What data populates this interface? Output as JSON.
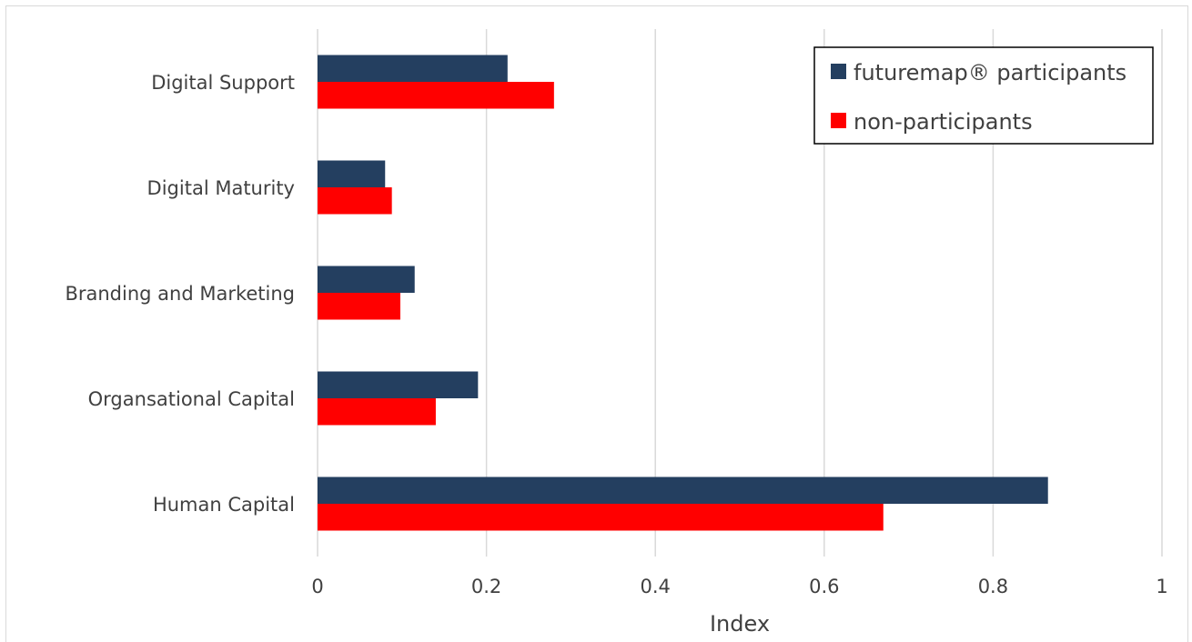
{
  "chart_data": {
    "type": "bar",
    "orientation": "horizontal",
    "categories": [
      "Digital Support",
      "Digital Maturity",
      "Branding and Marketing",
      "Organsational Capital",
      "Human Capital"
    ],
    "series": [
      {
        "name": "futuremap® participants",
        "color": "#243F60",
        "values": [
          0.225,
          0.08,
          0.115,
          0.19,
          0.865
        ]
      },
      {
        "name": "non-participants",
        "color": "#FF0000",
        "values": [
          0.28,
          0.088,
          0.098,
          0.14,
          0.67
        ]
      }
    ],
    "xlabel": "Index",
    "xlim": [
      0,
      1
    ],
    "xticks": [
      "0",
      "0.2",
      "0.4",
      "0.6",
      "0.8",
      "1"
    ],
    "grid": true,
    "legend_position": "top-right"
  }
}
